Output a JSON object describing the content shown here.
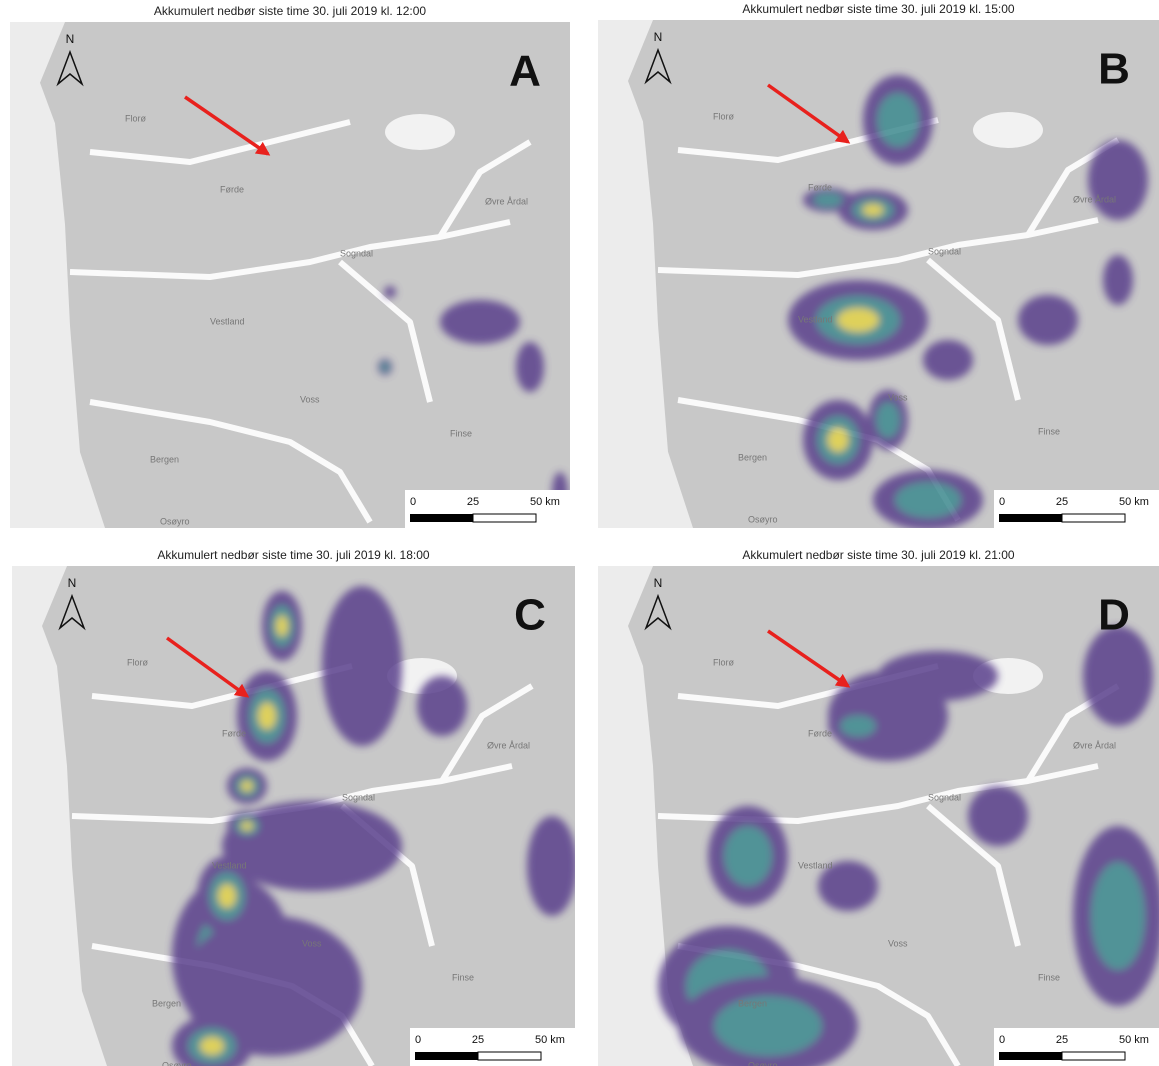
{
  "panels": [
    {
      "title": "Akkumulert nedbør siste time 30. juli 2019 kl. 12:00",
      "letter": "A",
      "north": "N",
      "scale_labels": [
        "0",
        "25",
        "50 km"
      ],
      "places": [
        "Florø",
        "Førde",
        "Sogndal",
        "Øvre Årdal",
        "Vestland",
        "Voss",
        "Finse",
        "Bergen",
        "Osøyro"
      ]
    },
    {
      "title": "Akkumulert nedbør siste time 30. juli 2019 kl. 15:00",
      "letter": "B",
      "north": "N",
      "scale_labels": [
        "0",
        "25",
        "50 km"
      ],
      "places": [
        "Florø",
        "Førde",
        "Sogndal",
        "Øvre Årdal",
        "Vestland",
        "Voss",
        "Finse",
        "Bergen",
        "Osøyro"
      ]
    },
    {
      "title": "Akkumulert nedbør siste time 30. juli 2019 kl. 18:00",
      "letter": "C",
      "north": "N",
      "scale_labels": [
        "0",
        "25",
        "50 km"
      ],
      "places": [
        "Florø",
        "Førde",
        "Sogndal",
        "Øvre Årdal",
        "Vestland",
        "Voss",
        "Finse",
        "Bergen",
        "Osøyro"
      ]
    },
    {
      "title": "Akkumulert nedbør siste time 30. juli 2019 kl. 21:00",
      "letter": "D",
      "north": "N",
      "scale_labels": [
        "0",
        "25",
        "50 km"
      ],
      "places": [
        "Florø",
        "Førde",
        "Sogndal",
        "Øvre Årdal",
        "Vestland",
        "Voss",
        "Finse",
        "Bergen",
        "Osøyro"
      ]
    }
  ]
}
